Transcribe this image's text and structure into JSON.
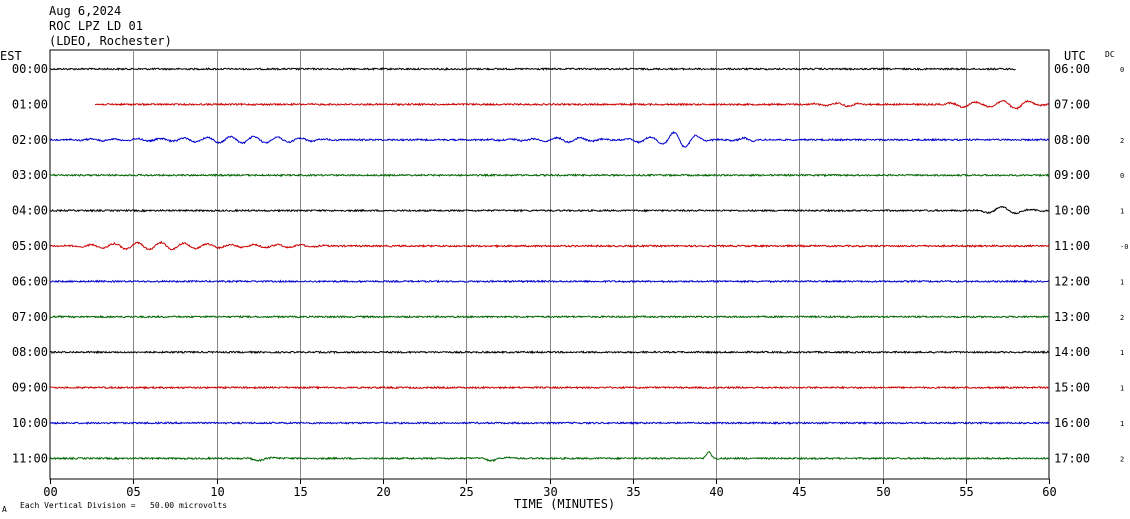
{
  "header": {
    "date": "Aug 6,2024",
    "station": "ROC LPZ LD 01",
    "network": "(LDEO, Rochester)"
  },
  "axes": {
    "left_title": "EST",
    "right_title": "UTC",
    "dc_title": "DC",
    "x_title": "TIME (MINUTES)",
    "footer": "Each Vertical Division =   50.00 microvolts",
    "corner_mark": "A"
  },
  "chart_data": {
    "type": "line",
    "xlim": [
      0,
      60
    ],
    "x_ticks": [
      "00",
      "05",
      "10",
      "15",
      "20",
      "25",
      "30",
      "35",
      "40",
      "45",
      "50",
      "55",
      "60"
    ],
    "grid": "vertical every 5 minutes",
    "colors": {
      "black": "#000000",
      "red": "#cc0000",
      "blue": "#0000cc",
      "green": "#006600"
    },
    "rows": [
      {
        "est": "00:00",
        "utc": "06:00",
        "dc": "0",
        "color": "#000000",
        "start": 0,
        "end": 58,
        "events": []
      },
      {
        "est": "01:00",
        "utc": "07:00",
        "dc": "",
        "color": "#cc0000",
        "start": 2.7,
        "end": 60,
        "events": [
          {
            "t0": 45.5,
            "t1": 49,
            "amp": 2.5,
            "period": 0.35
          },
          {
            "t0": 53.5,
            "t1": 60,
            "amp": 5.5,
            "period": 0.4
          }
        ]
      },
      {
        "est": "02:00",
        "utc": "08:00",
        "dc": "2",
        "color": "#0000cc",
        "start": 0,
        "end": 60,
        "events": [
          {
            "t0": 0.5,
            "t1": 19,
            "amp": 3.5,
            "period": 0.35
          },
          {
            "t0": 26,
            "t1": 34.5,
            "amp": 2.5,
            "period": 0.35
          },
          {
            "t0": 34.5,
            "t1": 40,
            "amp": 8.5,
            "period": 0.35
          },
          {
            "t0": 40,
            "t1": 43,
            "amp": 2,
            "period": 0.35
          }
        ]
      },
      {
        "est": "03:00",
        "utc": "09:00",
        "dc": "0",
        "color": "#006600",
        "start": 0,
        "end": 60,
        "events": []
      },
      {
        "est": "04:00",
        "utc": "10:00",
        "dc": "1",
        "color": "#000000",
        "start": 0,
        "end": 60,
        "events": [
          {
            "t0": 55,
            "t1": 60,
            "amp": 4,
            "period": 0.45
          }
        ]
      },
      {
        "est": "05:00",
        "utc": "11:00",
        "dc": "-0",
        "color": "#cc0000",
        "start": 0,
        "end": 60,
        "events": [
          {
            "t0": 0,
            "t1": 17,
            "amp": 4,
            "period": 0.35
          }
        ]
      },
      {
        "est": "06:00",
        "utc": "12:00",
        "dc": "1",
        "color": "#0000cc",
        "start": 0,
        "end": 60,
        "events": []
      },
      {
        "est": "07:00",
        "utc": "13:00",
        "dc": "2",
        "color": "#006600",
        "start": 0,
        "end": 60,
        "events": []
      },
      {
        "est": "08:00",
        "utc": "14:00",
        "dc": "1",
        "color": "#000000",
        "start": 0,
        "end": 60,
        "events": []
      },
      {
        "est": "09:00",
        "utc": "15:00",
        "dc": "1",
        "color": "#cc0000",
        "start": 0,
        "end": 60,
        "events": []
      },
      {
        "est": "10:00",
        "utc": "16:00",
        "dc": "1",
        "color": "#0000cc",
        "start": 0,
        "end": 60,
        "events": []
      },
      {
        "est": "11:00",
        "utc": "17:00",
        "dc": "2",
        "color": "#006600",
        "start": 0,
        "end": 60,
        "events": [
          {
            "t0": 11.5,
            "t1": 14,
            "amp": 2.5,
            "period": 0.5
          },
          {
            "t0": 25.5,
            "t1": 28,
            "amp": 2.5,
            "period": 0.5
          },
          {
            "t0": 39.2,
            "t1": 40.2,
            "amp": 7,
            "period": 0.5
          }
        ]
      }
    ]
  }
}
